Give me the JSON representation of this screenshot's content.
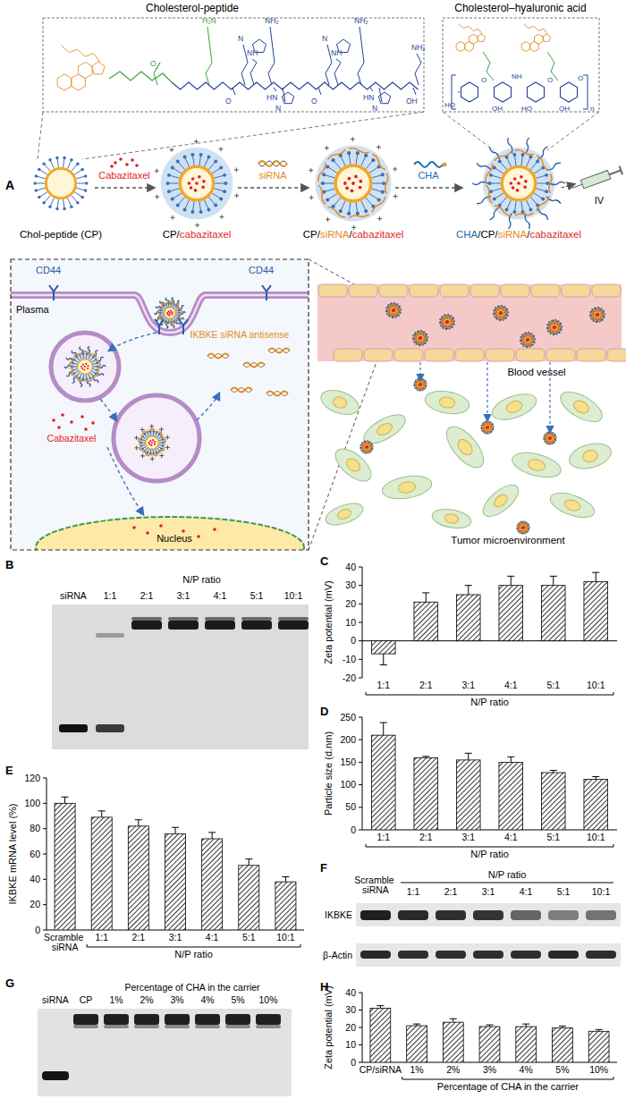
{
  "diagram": {
    "panel_label": "A",
    "structure_titles": [
      "Cholesterol-peptide",
      "Cholesterol–hyaluronic acid"
    ],
    "peptide_atoms": [
      "H₂N",
      "O",
      "NH₂",
      "N",
      "NH",
      "O",
      "NH₂",
      "N",
      "NH",
      "O",
      "HN",
      "N",
      "HN",
      "N",
      "NH₂",
      "OH"
    ],
    "ha_atoms": [
      "HO",
      "O",
      "OH",
      "NH",
      "O",
      "HO",
      "OH",
      "O",
      "n"
    ],
    "steps": [
      {
        "label": [
          {
            "text": "Chol-peptide (CP)",
            "color": "#000000"
          }
        ]
      },
      {
        "label": [
          {
            "text": "CP/",
            "color": "#000000"
          },
          {
            "text": "cabazitaxel",
            "color": "#e31e24"
          }
        ]
      },
      {
        "label": [
          {
            "text": "CP/",
            "color": "#000000"
          },
          {
            "text": "siRNA",
            "color": "#e8891a"
          },
          {
            "text": "/",
            "color": "#000000"
          },
          {
            "text": "cabazitaxel",
            "color": "#e31e24"
          }
        ]
      },
      {
        "label": [
          {
            "text": "CHA",
            "color": "#1f6fb2"
          },
          {
            "text": "/CP/",
            "color": "#000000"
          },
          {
            "text": "siRNA",
            "color": "#e8891a"
          },
          {
            "text": "/",
            "color": "#000000"
          },
          {
            "text": "cabazitaxel",
            "color": "#e31e24"
          }
        ]
      }
    ],
    "arrows": [
      {
        "text": "Cabazitaxel",
        "color": "#e31e24"
      },
      {
        "text": "siRNA",
        "color": "#e8891a"
      },
      {
        "text": "CHA",
        "color": "#1f6fb2"
      }
    ],
    "route": "IV",
    "receptors": [
      "CD44",
      "CD44"
    ],
    "membrane": "Plasma",
    "sirna_label": {
      "text": "IKBKE siRNA antisense",
      "color": "#e8891a"
    },
    "drug_label": {
      "text": "Cabazitaxel",
      "color": "#e31e24"
    },
    "nucleus": "Nucleus",
    "vessel": "Blood vessel",
    "tumor": "Tumor microenvironment"
  },
  "gels": [
    {
      "panel_label": "B",
      "header": "N/P ratio",
      "lanes": [
        "siRNA",
        "1:1",
        "2:1",
        "3:1",
        "4:1",
        "5:1",
        "10:1"
      ]
    },
    {
      "panel_label": "F",
      "header": "N/P ratio",
      "lanes": [
        "Scramble siRNA",
        "1:1",
        "2:1",
        "3:1",
        "4:1",
        "5:1",
        "10:1"
      ],
      "rows": [
        "IKBKE",
        "β-Actin"
      ]
    },
    {
      "panel_label": "G",
      "header": "Percentage of CHA in the carrier",
      "lanes": [
        "siRNA",
        "CP",
        "1%",
        "2%",
        "3%",
        "4%",
        "5%",
        "10%"
      ]
    }
  ],
  "chart_data": [
    {
      "type": "bar",
      "panel_label": "C",
      "y_label": "Zeta potential (mV)",
      "x_label": "N/P ratio",
      "categories": [
        "1:1",
        "2:1",
        "3:1",
        "4:1",
        "5:1",
        "10:1"
      ],
      "values": [
        -7,
        21,
        25,
        30,
        30,
        32
      ],
      "errors": [
        6,
        5,
        5,
        5,
        5,
        5
      ],
      "ylim": [
        -20,
        40
      ],
      "yticks": [
        -20,
        -10,
        0,
        10,
        20,
        30,
        40
      ],
      "color": "#000000"
    },
    {
      "type": "bar",
      "panel_label": "D",
      "y_label": "Particle size (d.nm)",
      "x_label": "N/P ratio",
      "categories": [
        "1:1",
        "2:1",
        "3:1",
        "4:1",
        "5:1",
        "10:1"
      ],
      "values": [
        210,
        160,
        155,
        150,
        127,
        112
      ],
      "errors": [
        28,
        3,
        15,
        12,
        5,
        6
      ],
      "ylim": [
        0,
        250
      ],
      "yticks": [
        0,
        50,
        100,
        150,
        200,
        250
      ],
      "color": "#000000"
    },
    {
      "type": "bar",
      "panel_label": "E",
      "y_label": "IKBKE mRNA level (%)",
      "x_label": "N/P ratio",
      "categories": [
        "Scramble siRNA",
        "1:1",
        "2:1",
        "3:1",
        "4:1",
        "5:1",
        "10:1"
      ],
      "values": [
        100,
        89,
        82,
        76,
        72,
        51,
        38
      ],
      "errors": [
        5,
        5,
        5,
        5,
        5,
        5,
        4
      ],
      "ylim": [
        0,
        120
      ],
      "yticks": [
        0,
        20,
        40,
        60,
        80,
        100,
        120
      ],
      "color": "#000000"
    },
    {
      "type": "bar",
      "panel_label": "H",
      "y_label": "Zeta potential (mV)",
      "x_label": "Percentage of CHA in the carrier",
      "categories": [
        "CP/siRNA",
        "1%",
        "2%",
        "3%",
        "4%",
        "5%",
        "10%"
      ],
      "values": [
        31,
        21,
        23,
        20.5,
        20.5,
        19.8,
        17.8
      ],
      "errors": [
        1.5,
        1,
        2,
        1,
        1.5,
        1,
        1
      ],
      "ylim": [
        0,
        40
      ],
      "yticks": [
        0,
        10,
        20,
        30,
        40
      ],
      "color": "#000000"
    }
  ]
}
